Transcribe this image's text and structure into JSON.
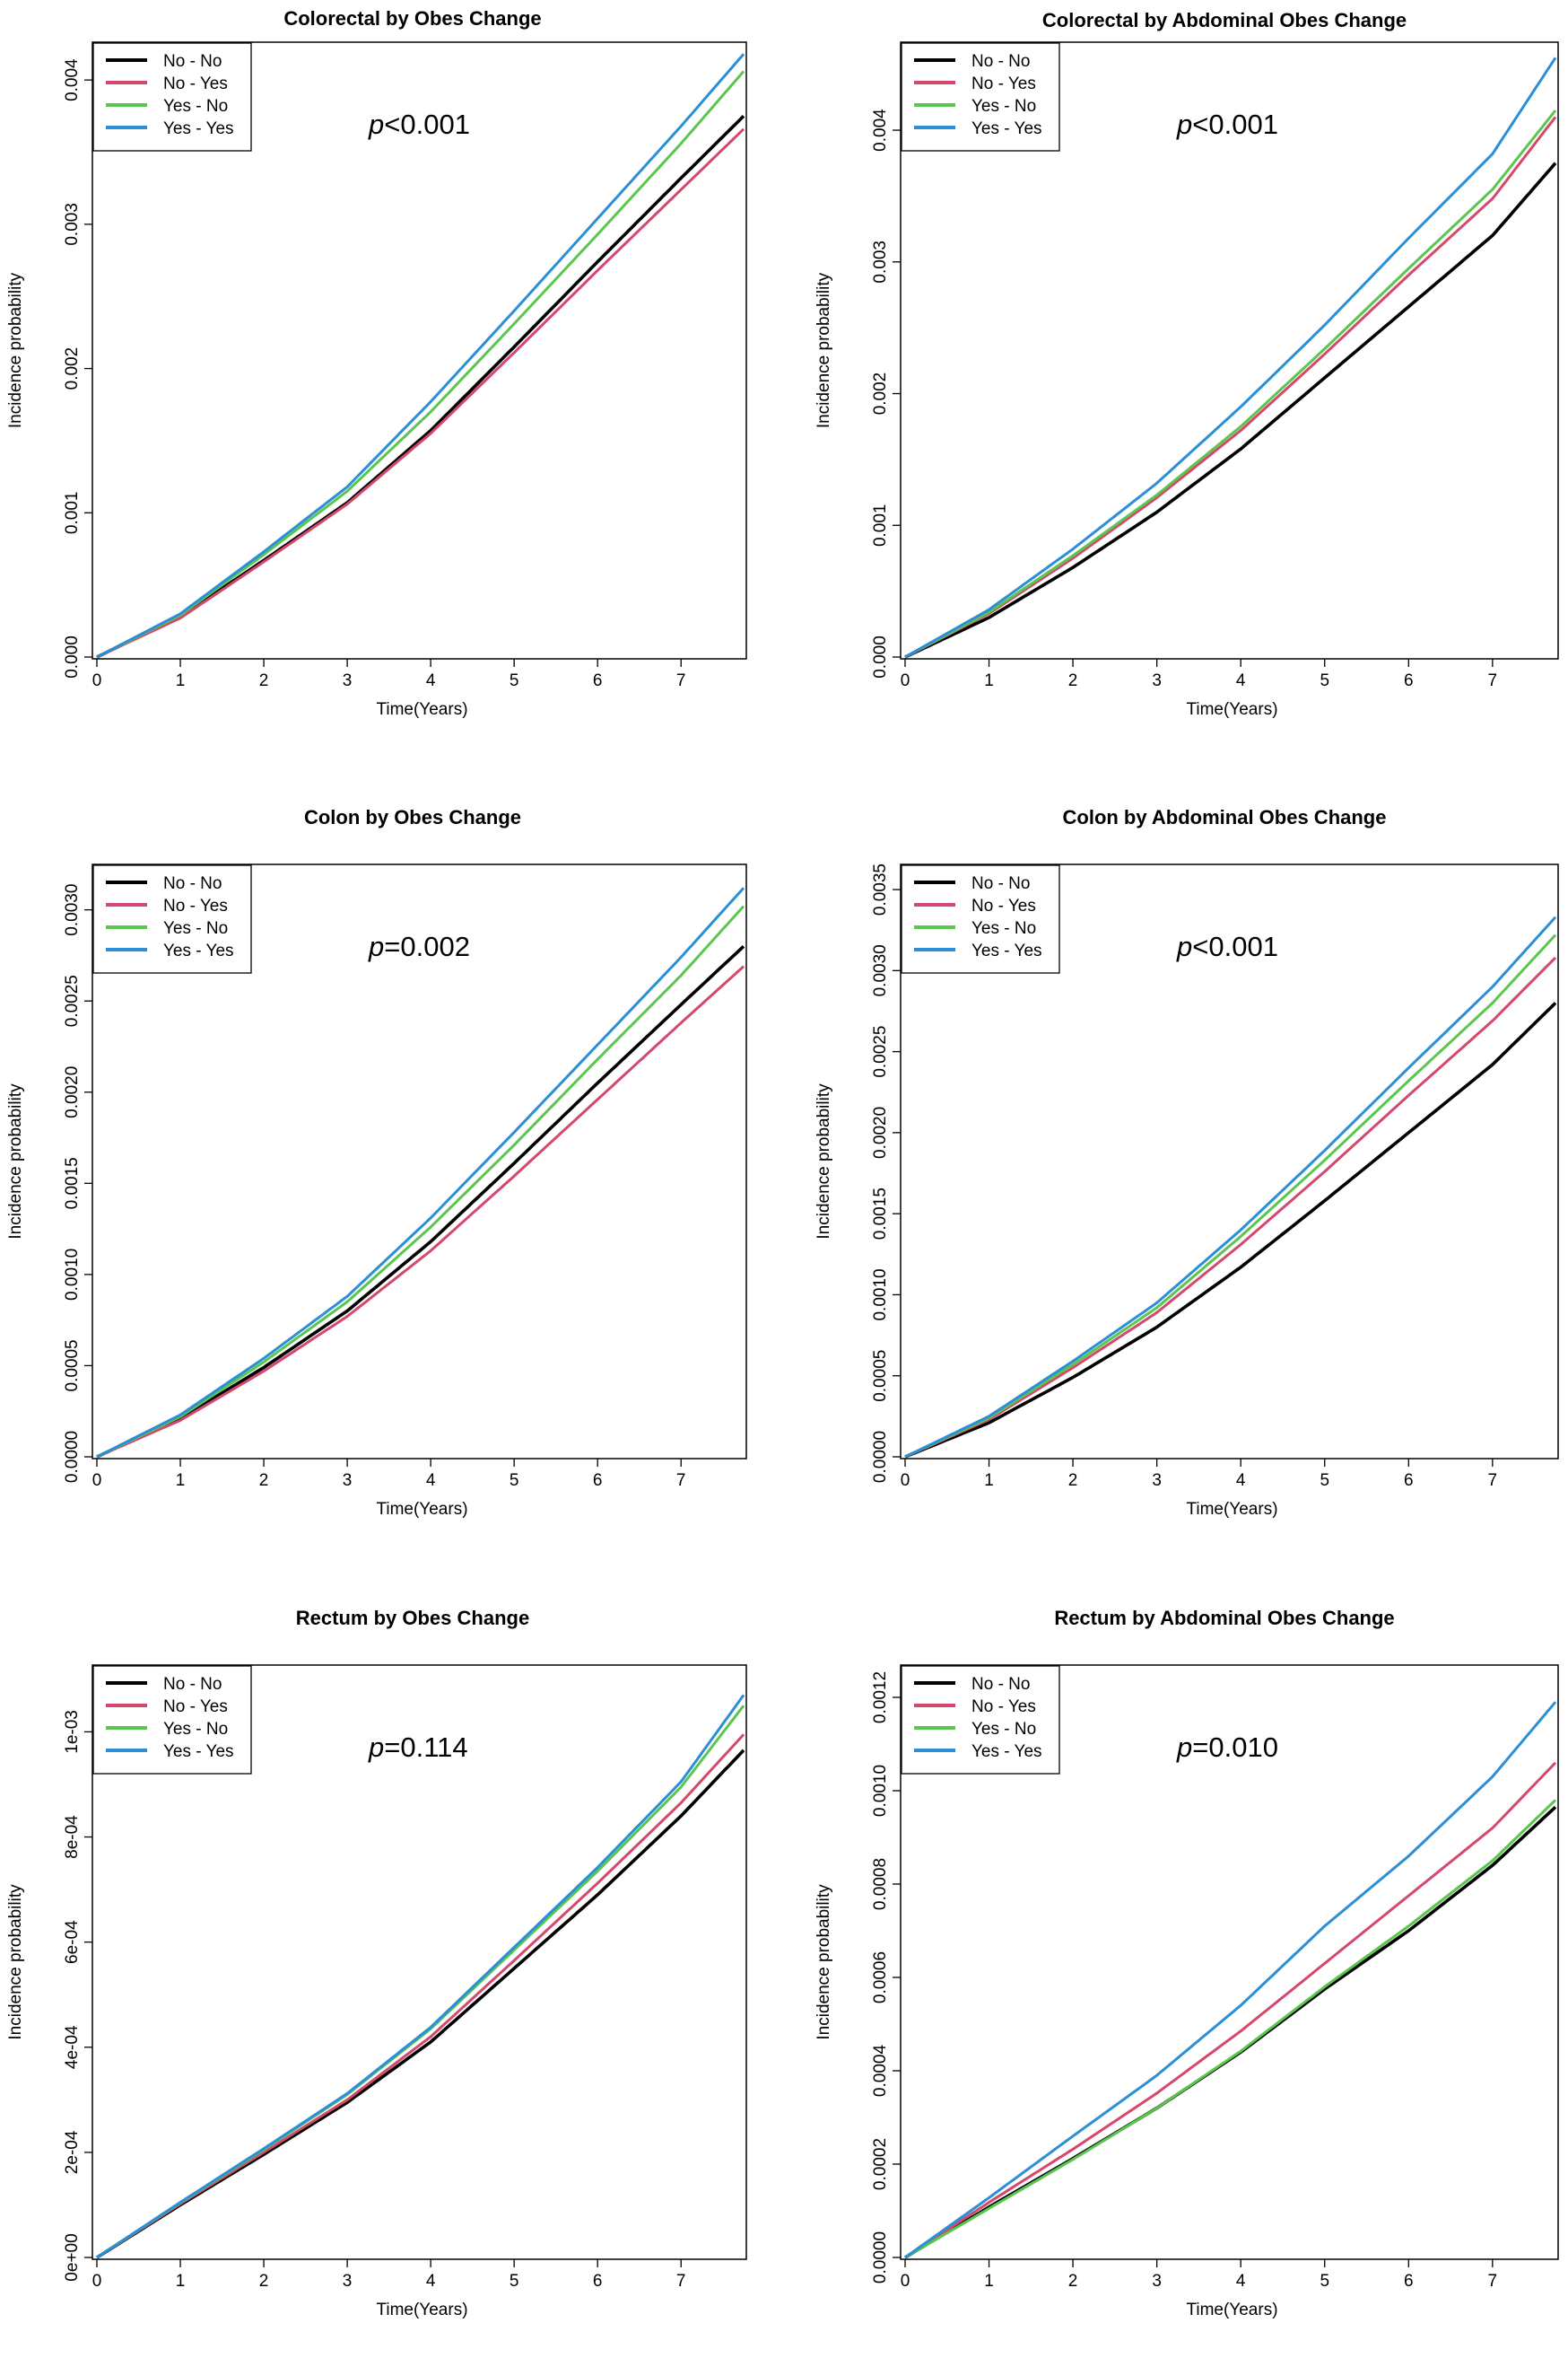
{
  "colors": {
    "No - No": "#000000",
    "No - Yes": "#d4486c",
    "Yes - No": "#5ac64e",
    "Yes - Yes": "#2a8fd6"
  },
  "chart_data": [
    {
      "type": "line",
      "title": "Colorectal by Obes Change",
      "xlabel": "Time(Years)",
      "ylabel": "Incidence probability",
      "xlim": [
        0,
        7.75
      ],
      "ylim": [
        0,
        0.0042
      ],
      "xticks": [
        "0",
        "1",
        "2",
        "3",
        "4",
        "5",
        "6",
        "7"
      ],
      "yticks": [
        "0.000",
        "0.001",
        "0.002",
        "0.003",
        "0.004"
      ],
      "ytick_values": [
        0,
        0.001,
        0.002,
        0.003,
        0.004
      ],
      "annotation_prefix": "p",
      "annotation_text": "<0.001",
      "legend": "top-left",
      "x": [
        0,
        1,
        2,
        3,
        4,
        5,
        6,
        7,
        7.75
      ],
      "series": [
        {
          "name": "No - No",
          "values": [
            0,
            0.00028,
            0.00067,
            0.00107,
            0.00157,
            0.00215,
            0.00274,
            0.00332,
            0.00375
          ]
        },
        {
          "name": "No - Yes",
          "values": [
            0,
            0.00027,
            0.00066,
            0.00106,
            0.00155,
            0.00211,
            0.00268,
            0.00324,
            0.00366
          ]
        },
        {
          "name": "Yes - No",
          "values": [
            0,
            0.00029,
            0.00071,
            0.00115,
            0.0017,
            0.00231,
            0.00293,
            0.00356,
            0.00406
          ]
        },
        {
          "name": "Yes - Yes",
          "values": [
            0,
            0.0003,
            0.00073,
            0.00118,
            0.00177,
            0.0024,
            0.00304,
            0.00368,
            0.00418
          ]
        }
      ]
    },
    {
      "type": "line",
      "title": "Colorectal by Abdominal Obes Change",
      "xlabel": "Time(Years)",
      "ylabel": "Incidence probability",
      "xlim": [
        0,
        7.75
      ],
      "ylim": [
        0,
        0.0046
      ],
      "xticks": [
        "0",
        "1",
        "2",
        "3",
        "4",
        "5",
        "6",
        "7"
      ],
      "yticks": [
        "0.000",
        "0.001",
        "0.002",
        "0.003",
        "0.004"
      ],
      "ytick_values": [
        0,
        0.001,
        0.002,
        0.003,
        0.004
      ],
      "annotation_prefix": "p",
      "annotation_text": "<0.001",
      "legend": "top-left",
      "x": [
        0,
        1,
        2,
        3,
        4,
        5,
        6,
        7,
        7.75
      ],
      "series": [
        {
          "name": "No - No",
          "values": [
            0,
            0.0003,
            0.00068,
            0.0011,
            0.00158,
            0.00212,
            0.00266,
            0.0032,
            0.00375
          ]
        },
        {
          "name": "No - Yes",
          "values": [
            0,
            0.00033,
            0.00075,
            0.00121,
            0.00172,
            0.0023,
            0.0029,
            0.00348,
            0.0041
          ]
        },
        {
          "name": "Yes - No",
          "values": [
            0,
            0.00034,
            0.00077,
            0.00123,
            0.00175,
            0.00234,
            0.00295,
            0.00355,
            0.00415
          ]
        },
        {
          "name": "Yes - Yes",
          "values": [
            0,
            0.00036,
            0.00082,
            0.00132,
            0.0019,
            0.00252,
            0.00318,
            0.00382,
            0.00455
          ]
        }
      ]
    },
    {
      "type": "line",
      "title": "Colon by Obes Change",
      "xlabel": "Time(Years)",
      "ylabel": "Incidence probability",
      "xlim": [
        0,
        7.75
      ],
      "ylim": [
        0,
        0.0032
      ],
      "xticks": [
        "0",
        "1",
        "2",
        "3",
        "4",
        "5",
        "6",
        "7"
      ],
      "yticks": [
        "0.0000",
        "0.0005",
        "0.0010",
        "0.0015",
        "0.0020",
        "0.0025",
        "0.0030"
      ],
      "ytick_values": [
        0,
        0.0005,
        0.001,
        0.0015,
        0.002,
        0.0025,
        0.003
      ],
      "annotation_prefix": "p",
      "annotation_text": "=0.002",
      "legend": "top-left",
      "x": [
        0,
        1,
        2,
        3,
        4,
        5,
        6,
        7,
        7.75
      ],
      "series": [
        {
          "name": "No - No",
          "values": [
            0,
            0.00021,
            0.00049,
            0.0008,
            0.00118,
            0.00161,
            0.00205,
            0.00248,
            0.0028
          ]
        },
        {
          "name": "No - Yes",
          "values": [
            0,
            0.0002,
            0.00047,
            0.00077,
            0.00113,
            0.00154,
            0.00196,
            0.00238,
            0.00269
          ]
        },
        {
          "name": "Yes - No",
          "values": [
            0,
            0.00022,
            0.00052,
            0.00085,
            0.00126,
            0.00171,
            0.00218,
            0.00264,
            0.00302
          ]
        },
        {
          "name": "Yes - Yes",
          "values": [
            0,
            0.00023,
            0.00054,
            0.00088,
            0.00131,
            0.00178,
            0.00226,
            0.00274,
            0.00312
          ]
        }
      ]
    },
    {
      "type": "line",
      "title": "Colon by Abdominal Obes Change",
      "xlabel": "Time(Years)",
      "ylabel": "Incidence probability",
      "xlim": [
        0,
        7.75
      ],
      "ylim": [
        0,
        0.0036
      ],
      "xticks": [
        "0",
        "1",
        "2",
        "3",
        "4",
        "5",
        "6",
        "7"
      ],
      "yticks": [
        "0.0000",
        "0.0005",
        "0.0010",
        "0.0015",
        "0.0020",
        "0.0025",
        "0.0030",
        "0.0035"
      ],
      "ytick_values": [
        0,
        0.0005,
        0.001,
        0.0015,
        0.002,
        0.0025,
        0.003,
        0.0035
      ],
      "annotation_prefix": "p",
      "annotation_text": "<0.001",
      "legend": "top-left",
      "x": [
        0,
        1,
        2,
        3,
        4,
        5,
        6,
        7,
        7.75
      ],
      "series": [
        {
          "name": "No - No",
          "values": [
            0,
            0.00021,
            0.00049,
            0.0008,
            0.00117,
            0.00158,
            0.002,
            0.00242,
            0.0028
          ]
        },
        {
          "name": "No - Yes",
          "values": [
            0,
            0.00023,
            0.00055,
            0.00089,
            0.00131,
            0.00176,
            0.00223,
            0.00269,
            0.00308
          ]
        },
        {
          "name": "Yes - No",
          "values": [
            0,
            0.00024,
            0.00057,
            0.00092,
            0.00136,
            0.00183,
            0.00232,
            0.0028,
            0.00322
          ]
        },
        {
          "name": "Yes - Yes",
          "values": [
            0,
            0.00025,
            0.00059,
            0.00095,
            0.0014,
            0.00189,
            0.0024,
            0.0029,
            0.00333
          ]
        }
      ]
    },
    {
      "type": "line",
      "title": "Rectum by Obes Change",
      "xlabel": "Time(Years)",
      "ylabel": "Incidence probability",
      "xlim": [
        0,
        7.75
      ],
      "ylim": [
        0,
        0.00111
      ],
      "xticks": [
        "0",
        "1",
        "2",
        "3",
        "4",
        "5",
        "6",
        "7"
      ],
      "yticks": [
        "0e+00",
        "2e-04",
        "4e-04",
        "6e-04",
        "8e-04",
        "1e-03"
      ],
      "ytick_values": [
        0,
        0.0002,
        0.0004,
        0.0006,
        0.0008,
        0.001
      ],
      "annotation_prefix": "p",
      "annotation_text": "=0.114",
      "legend": "top-left",
      "x": [
        0,
        1,
        2,
        3,
        4,
        5,
        6,
        7,
        7.75
      ],
      "series": [
        {
          "name": "No - No",
          "values": [
            0,
            0.0001,
            0.000196,
            0.000295,
            0.00041,
            0.00055,
            0.00069,
            0.00084,
            0.000965
          ]
        },
        {
          "name": "No - Yes",
          "values": [
            0,
            0.000102,
            0.0002,
            0.0003,
            0.00042,
            0.000565,
            0.000712,
            0.000865,
            0.000995
          ]
        },
        {
          "name": "Yes - No",
          "values": [
            0,
            0.000104,
            0.000205,
            0.00031,
            0.000435,
            0.000585,
            0.000735,
            0.000895,
            0.00105
          ]
        },
        {
          "name": "Yes - Yes",
          "values": [
            0,
            0.000105,
            0.000207,
            0.000312,
            0.000438,
            0.00059,
            0.000742,
            0.000905,
            0.00107
          ]
        }
      ]
    },
    {
      "type": "line",
      "title": "Rectum by Abdominal Obes Change",
      "xlabel": "Time(Years)",
      "ylabel": "Incidence probability",
      "xlim": [
        0,
        7.75
      ],
      "ylim": [
        0,
        0.00125
      ],
      "xticks": [
        "0",
        "1",
        "2",
        "3",
        "4",
        "5",
        "6",
        "7"
      ],
      "yticks": [
        "0.0000",
        "0.0002",
        "0.0004",
        "0.0006",
        "0.0008",
        "0.0010",
        "0.0012"
      ],
      "ytick_values": [
        0,
        0.0002,
        0.0004,
        0.0006,
        0.0008,
        0.001,
        0.0012
      ],
      "annotation_prefix": "p",
      "annotation_text": "=0.010",
      "legend": "top-left",
      "x": [
        0,
        1,
        2,
        3,
        4,
        5,
        6,
        7,
        7.75
      ],
      "series": [
        {
          "name": "No - No",
          "values": [
            0,
            0.000108,
            0.000212,
            0.00032,
            0.00044,
            0.000575,
            0.0007,
            0.00084,
            0.000965
          ]
        },
        {
          "name": "No - Yes",
          "values": [
            0,
            0.000118,
            0.000232,
            0.000352,
            0.000485,
            0.00063,
            0.000775,
            0.00092,
            0.00106
          ]
        },
        {
          "name": "Yes - No",
          "values": [
            0,
            0.000105,
            0.00021,
            0.00032,
            0.000442,
            0.00058,
            0.00071,
            0.00085,
            0.00098
          ]
        },
        {
          "name": "Yes - Yes",
          "values": [
            0,
            0.000128,
            0.00026,
            0.00039,
            0.00054,
            0.00071,
            0.00086,
            0.00103,
            0.00119
          ]
        }
      ]
    }
  ]
}
